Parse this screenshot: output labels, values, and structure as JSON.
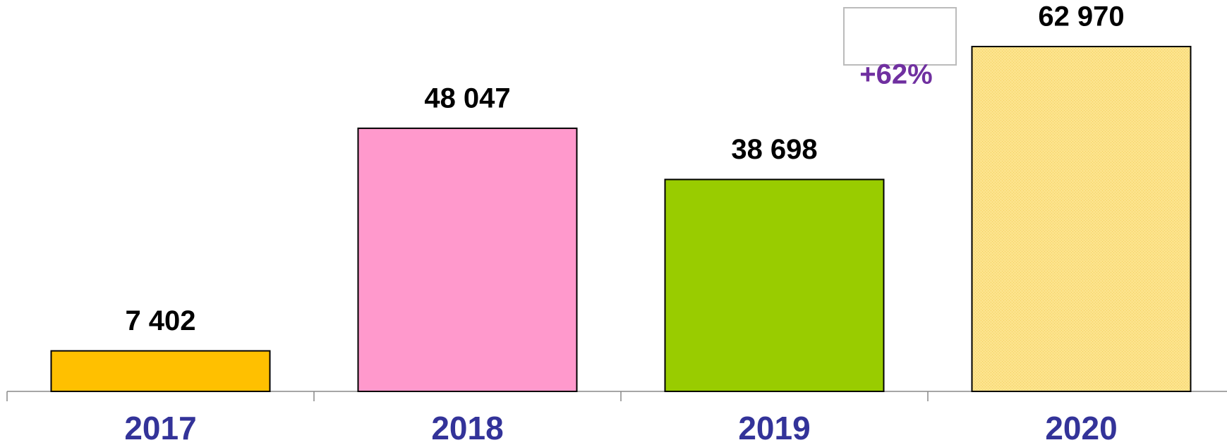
{
  "chart_data": {
    "type": "bar",
    "categories": [
      "2017",
      "2018",
      "2019",
      "2020"
    ],
    "values": [
      7402,
      48047,
      38698,
      62970
    ],
    "value_labels": [
      "7 402",
      "48 047",
      "38 698",
      "62 970"
    ],
    "colors": [
      "#ffc000",
      "#ff99cc",
      "#99cc00",
      "#fce38c"
    ],
    "annotation": "+62%"
  }
}
